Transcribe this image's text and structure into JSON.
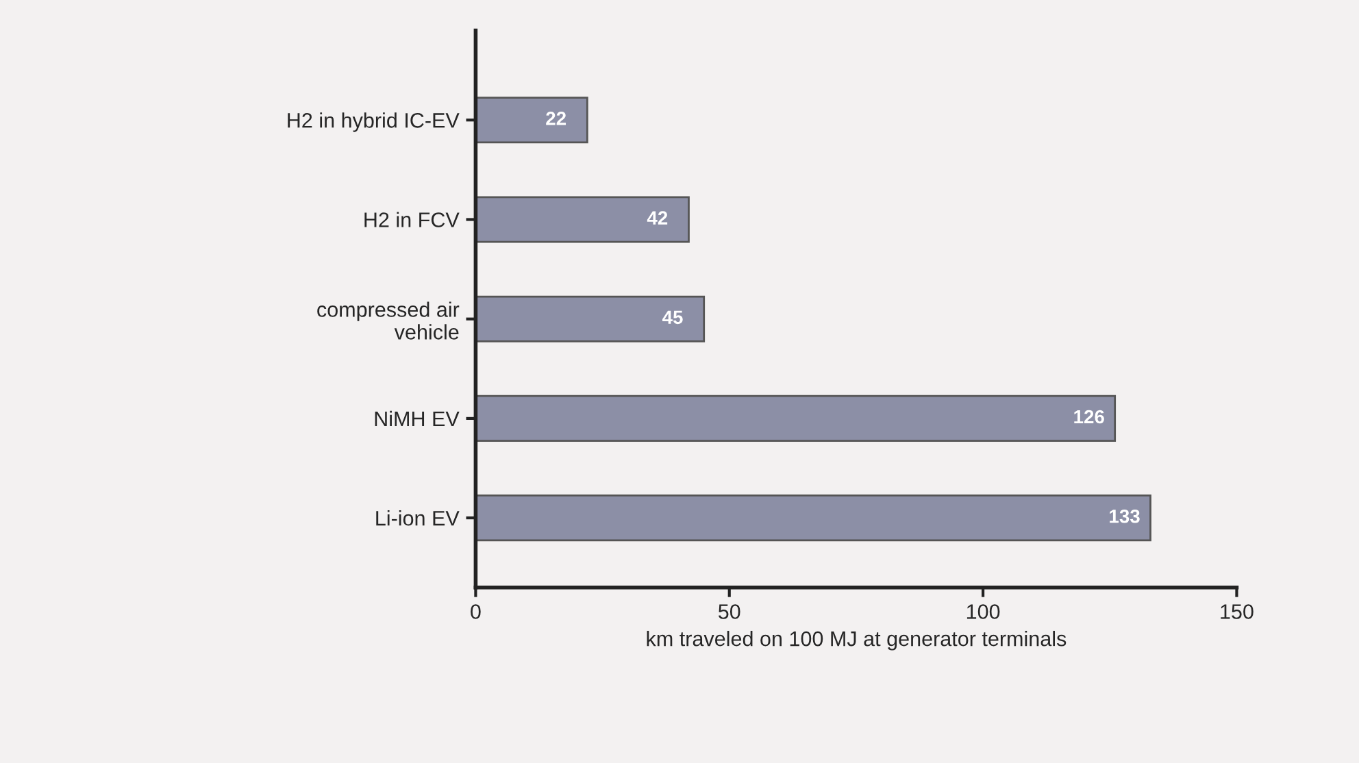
{
  "chart_data": {
    "type": "bar",
    "orientation": "horizontal",
    "categories": [
      "H2 in hybrid IC-EV",
      "H2 in FCV",
      "compressed air\nvehicle",
      "NiMH EV",
      "Li-ion EV"
    ],
    "values": [
      22,
      42,
      45,
      126,
      133
    ],
    "color": "#8c8fa6",
    "xlabel": "km traveled on 100 MJ at generator terminals",
    "xlim": [
      0,
      150
    ],
    "xticks": [
      0,
      50,
      100,
      150
    ],
    "data_labels": true,
    "grid": false
  }
}
